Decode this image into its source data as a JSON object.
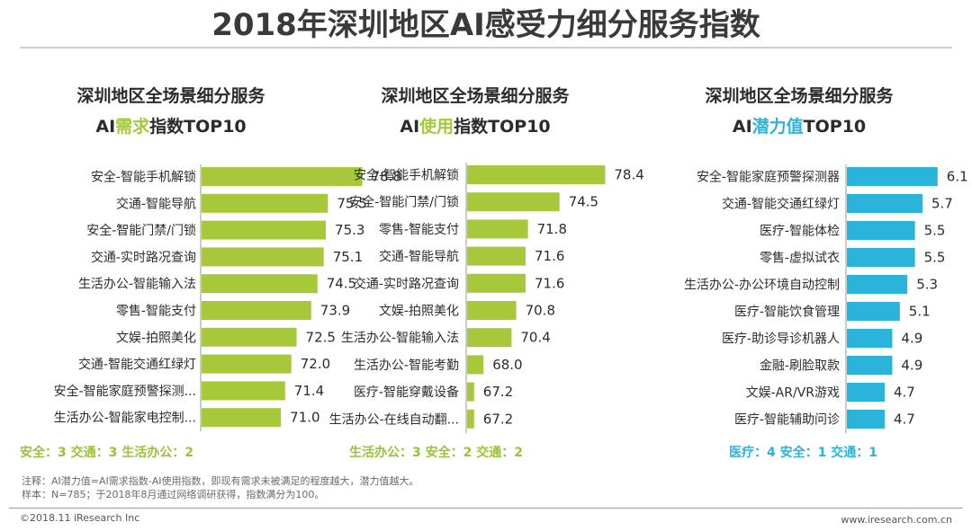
{
  "page": {
    "title": "2018年深圳地区AI感受力细分服务指数",
    "note_line1": "注释：AI潜力值=AI需求指数-AI使用指数，即现有需求未被满足的程度越大，潜力值越大。",
    "note_line2": "样本：N=785；于2018年8月通过网络调研获得，指数满分为100。",
    "copyright": "©2018.11 iResearch Inc",
    "website": "www.iresearch.com.cn"
  },
  "chart_data": [
    {
      "type": "bar",
      "orientation": "horizontal",
      "title_line1": "深圳地区全场景细分服务",
      "title_prefix": "AI",
      "title_accent": "需求",
      "title_suffix": "指数TOP10",
      "color": "#a6c83a",
      "categories": [
        "安全-智能手机解锁",
        "交通-智能导航",
        "安全-智能门禁/门锁",
        "交通-实时路况查询",
        "生活办公-智能输入法",
        "零售-智能支付",
        "文娱-拍照美化",
        "交通-智能交通红绿灯",
        "安全-智能家庭预警探测...",
        "生活办公-智能家电控制..."
      ],
      "values": [
        78.8,
        75.5,
        75.3,
        75.1,
        74.5,
        73.9,
        72.5,
        72.0,
        71.4,
        71.0
      ],
      "value_labels": [
        "78.8",
        "75.5",
        "75.3",
        "75.1",
        "74.5",
        "73.9",
        "72.5",
        "72.0",
        "71.4",
        "71.0"
      ],
      "summary": "安全：3  交通：3  生活办公：2"
    },
    {
      "type": "bar",
      "orientation": "horizontal",
      "title_line1": "深圳地区全场景细分服务",
      "title_prefix": "AI",
      "title_accent": "使用",
      "title_suffix": "指数TOP10",
      "color": "#a6c83a",
      "categories": [
        "安全-智能手机解锁",
        "安全-智能门禁/门锁",
        "零售-智能支付",
        "交通-智能导航",
        "交通-实时路况查询",
        "文娱-拍照美化",
        "生活办公-智能输入法",
        "生活办公-智能考勤",
        "医疗-智能穿戴设备",
        "生活办公-在线自动翻..."
      ],
      "values": [
        78.4,
        74.5,
        71.8,
        71.6,
        71.6,
        70.8,
        70.4,
        68.0,
        67.2,
        67.2
      ],
      "value_labels": [
        "78.4",
        "74.5",
        "71.8",
        "71.6",
        "71.6",
        "70.8",
        "70.4",
        "68.0",
        "67.2",
        "67.2"
      ],
      "summary": "生活办公：3  安全：2  交通：2"
    },
    {
      "type": "bar",
      "orientation": "horizontal",
      "title_line1": "深圳地区全场景细分服务",
      "title_prefix": "AI",
      "title_accent": "潜力值",
      "title_suffix": "TOP10",
      "color": "#2ab4dc",
      "categories": [
        "安全-智能家庭预警探测器",
        "交通-智能交通红绿灯",
        "医疗-智能体检",
        "零售-虚拟试衣",
        "生活办公-办公环境自动控制",
        "医疗-智能饮食管理",
        "医疗-助诊导诊机器人",
        "金融-刷脸取款",
        "文娱-AR/VR游戏",
        "医疗-智能辅助问诊"
      ],
      "values": [
        6.1,
        5.7,
        5.5,
        5.5,
        5.3,
        5.1,
        4.9,
        4.9,
        4.7,
        4.7
      ],
      "value_labels": [
        "6.1",
        "5.7",
        "5.5",
        "5.5",
        "5.3",
        "5.1",
        "4.9",
        "4.9",
        "4.7",
        "4.7"
      ],
      "summary": "医疗：4  安全：1  交通：1"
    }
  ]
}
